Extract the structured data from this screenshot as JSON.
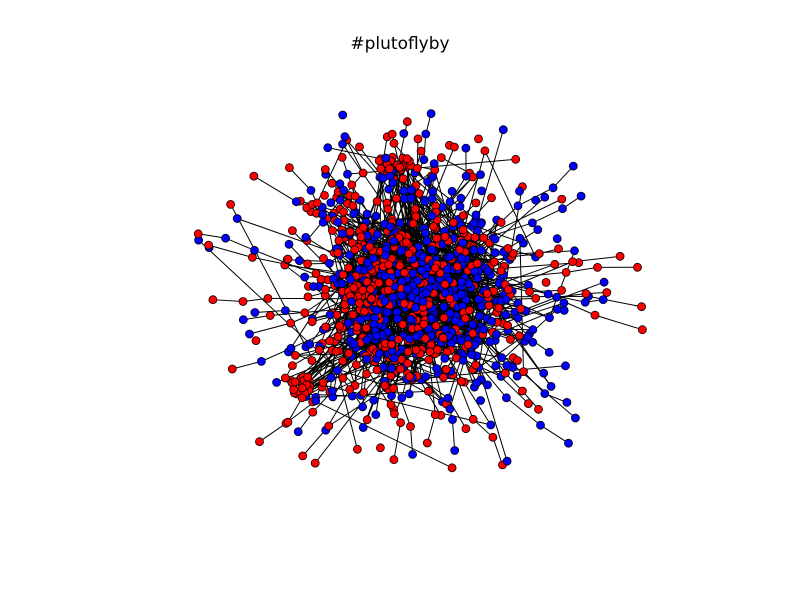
{
  "figure": {
    "title": "#plutoflyby"
  },
  "graph": {
    "node_classes": [
      {
        "key": "red",
        "color": "#ff0000"
      },
      {
        "key": "blue",
        "color": "#0000ff"
      }
    ],
    "node_outline_color": "#000000",
    "edge_color": "#000000"
  }
}
